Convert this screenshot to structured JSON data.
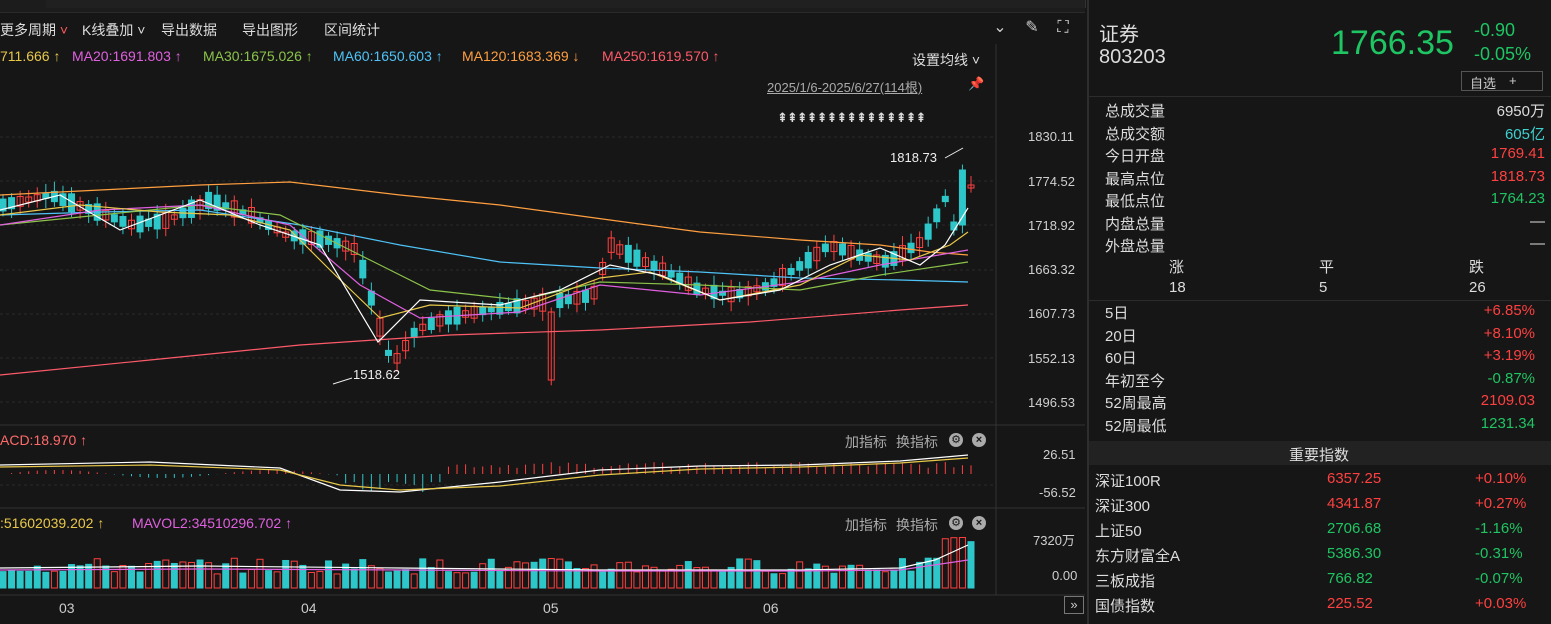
{
  "toolbar": {
    "more_periods": "更多周期",
    "kline_overlay": "K线叠加",
    "export_data": "导出数据",
    "export_chart": "导出图形",
    "range_stats": "区间统计",
    "set_ma": "设置均线"
  },
  "ma_legend": [
    {
      "label": "711.666",
      "arrow": "↑",
      "color": "#e8c84a"
    },
    {
      "label": "MA20:1691.803",
      "arrow": "↑",
      "color": "#e060e0"
    },
    {
      "label": "MA30:1675.026",
      "arrow": "↑",
      "color": "#8bc34a"
    },
    {
      "label": "MA60:1650.603",
      "arrow": "↑",
      "color": "#4fc3f7"
    },
    {
      "label": "MA120:1683.369",
      "arrow": "↓",
      "color": "#ff9f40"
    },
    {
      "label": "MA250:1619.570",
      "arrow": "↑",
      "color": "#ff5a6a"
    }
  ],
  "date_range": "2025/1/6-2025/6/27(114根)",
  "price_axis": [
    "1830.11",
    "1774.52",
    "1718.92",
    "1663.32",
    "1607.73",
    "1552.13",
    "1496.53"
  ],
  "annotations": {
    "high": "1818.73",
    "low": "1518.62"
  },
  "macd": {
    "label": "ACD:18.970",
    "arrow": "↑",
    "add_indicator": "加指标",
    "switch_indicator": "换指标",
    "axis": [
      "26.51",
      "-56.52"
    ]
  },
  "volume": {
    "label1": ":51602039.202",
    "arrow1": "↑",
    "label2": "MAVOL2:34510296.702",
    "arrow2": "↑",
    "add_indicator": "加指标",
    "switch_indicator": "换指标",
    "axis": [
      "7320万",
      "0.00"
    ]
  },
  "x_labels": [
    "03",
    "04",
    "05",
    "06"
  ],
  "stock": {
    "name": "证券",
    "code": "803203",
    "price": "1766.35",
    "change": "-0.90",
    "change_pct": "-0.05%",
    "watch": "自选",
    "watch_plus": "+"
  },
  "stats": [
    {
      "label": "总成交量",
      "value": "6950万",
      "tone": "white"
    },
    {
      "label": "总成交额",
      "value": "605亿",
      "tone": "teal"
    },
    {
      "label": "今日开盘",
      "value": "1769.41",
      "tone": "red"
    },
    {
      "label": "最高点位",
      "value": "1818.73",
      "tone": "red"
    },
    {
      "label": "最低点位",
      "value": "1764.23",
      "tone": "green"
    },
    {
      "label": "内盘总量",
      "value": "—",
      "tone": "white"
    },
    {
      "label": "外盘总量",
      "value": "—",
      "tone": "white"
    }
  ],
  "breadth": {
    "up_label": "涨",
    "flat_label": "平",
    "down_label": "跌",
    "up": "18",
    "flat": "5",
    "down": "26"
  },
  "periods": [
    {
      "label": "5日",
      "value": "+6.85%",
      "tone": "red"
    },
    {
      "label": "20日",
      "value": "+8.10%",
      "tone": "red"
    },
    {
      "label": "60日",
      "value": "+3.19%",
      "tone": "red"
    },
    {
      "label": "年初至今",
      "value": "-0.87%",
      "tone": "green"
    },
    {
      "label": "52周最高",
      "value": "2109.03",
      "tone": "red"
    },
    {
      "label": "52周最低",
      "value": "1231.34",
      "tone": "green"
    }
  ],
  "indices_title": "重要指数",
  "indices": [
    {
      "name": "深证100R",
      "value": "6357.25",
      "pct": "+0.10%",
      "tone": "red"
    },
    {
      "name": "深证300",
      "value": "4341.87",
      "pct": "+0.27%",
      "tone": "red"
    },
    {
      "name": "上证50",
      "value": "2706.68",
      "pct": "-1.16%",
      "tone": "green"
    },
    {
      "name": "东方财富全A",
      "value": "5386.30",
      "pct": "-0.31%",
      "tone": "green"
    },
    {
      "name": "三板成指",
      "value": "766.82",
      "pct": "-0.07%",
      "tone": "green"
    },
    {
      "name": "国债指数",
      "value": "225.52",
      "pct": "+0.03%",
      "tone": "red"
    }
  ],
  "colors": {
    "up": "#ff4040",
    "down": "#2ec7c9",
    "green": "#1fc463"
  }
}
